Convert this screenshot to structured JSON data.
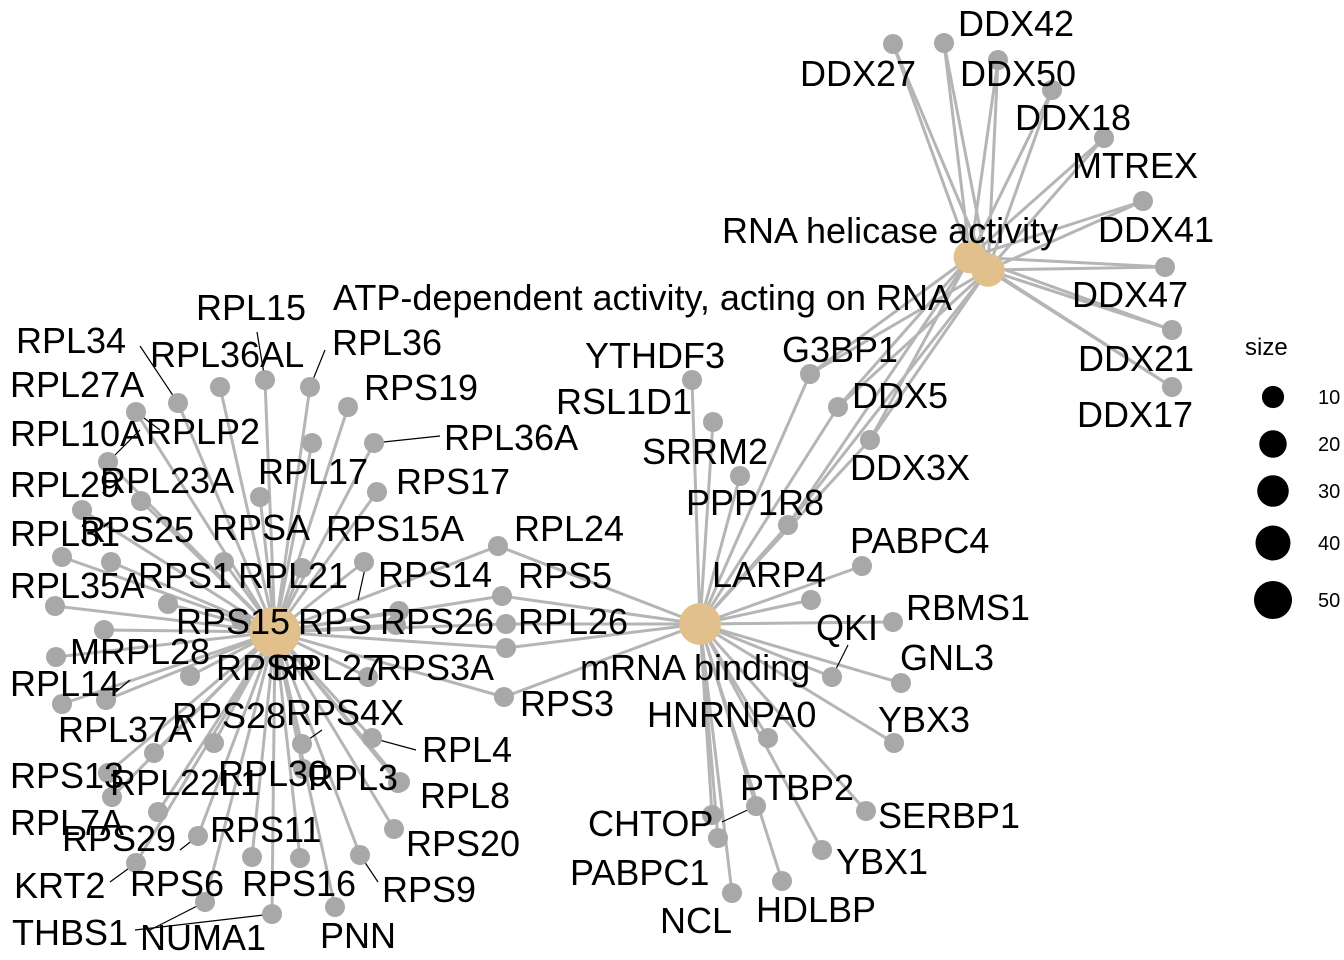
{
  "categories": [
    {
      "id": "rna_helicase",
      "label": "RNA helicase activity",
      "size": 16
    },
    {
      "id": "atp_dependent",
      "label": "ATP-dependent activity, acting on RNA",
      "size": 17
    },
    {
      "id": "mrna_binding",
      "label": "mRNA binding",
      "size": 33
    },
    {
      "id": "ribosome",
      "label": "",
      "size": 55
    }
  ],
  "genes": [
    {
      "label": "DDX42"
    },
    {
      "label": "DDX27"
    },
    {
      "label": "DDX50"
    },
    {
      "label": "DDX18"
    },
    {
      "label": "MTREX"
    },
    {
      "label": "DDX41"
    },
    {
      "label": "DDX47"
    },
    {
      "label": "DDX21"
    },
    {
      "label": "DDX17"
    },
    {
      "label": "G3BP1"
    },
    {
      "label": "DDX5"
    },
    {
      "label": "DDX3X"
    },
    {
      "label": "YTHDF3"
    },
    {
      "label": "RSL1D1"
    },
    {
      "label": "SRRM2"
    },
    {
      "label": "PPP1R8"
    },
    {
      "label": "PABPC4"
    },
    {
      "label": "LARP4"
    },
    {
      "label": "RBMS1"
    },
    {
      "label": "QKI"
    },
    {
      "label": "GNL3"
    },
    {
      "label": "YBX3"
    },
    {
      "label": "HNRNPA0"
    },
    {
      "label": "PTBP2"
    },
    {
      "label": "SERBP1"
    },
    {
      "label": "CHTOP"
    },
    {
      "label": "YBX1"
    },
    {
      "label": "PABPC1"
    },
    {
      "label": "HDLBP"
    },
    {
      "label": "NCL"
    },
    {
      "label": "RPL24"
    },
    {
      "label": "RPS5"
    },
    {
      "label": "RPL26"
    },
    {
      "label": "RPS3A"
    },
    {
      "label": "RPS3"
    },
    {
      "label": "RPL4"
    },
    {
      "label": "RPL8"
    },
    {
      "label": "RPS20"
    },
    {
      "label": "RPS9"
    },
    {
      "label": "PNN"
    },
    {
      "label": "RPS16"
    },
    {
      "label": "RPS11"
    },
    {
      "label": "NUMA1"
    },
    {
      "label": "RPS6"
    },
    {
      "label": "THBS1"
    },
    {
      "label": "KRT2"
    },
    {
      "label": "RPS29"
    },
    {
      "label": "RPL7A"
    },
    {
      "label": "RPL22L1"
    },
    {
      "label": "RPS13"
    },
    {
      "label": "RPL37A"
    },
    {
      "label": "RPL14"
    },
    {
      "label": "MRPL28"
    },
    {
      "label": "RPL35A"
    },
    {
      "label": "RPL31"
    },
    {
      "label": "RPL29"
    },
    {
      "label": "RPL10A"
    },
    {
      "label": "RPL27A"
    },
    {
      "label": "RPL34"
    },
    {
      "label": "RPL15"
    },
    {
      "label": "RPL36AL"
    },
    {
      "label": "RPL36"
    },
    {
      "label": "RPS19"
    },
    {
      "label": "RPL36A"
    },
    {
      "label": "RPS17"
    },
    {
      "label": "RPLP2"
    },
    {
      "label": "RPL23A"
    },
    {
      "label": "RPL17"
    },
    {
      "label": "RPS25"
    },
    {
      "label": "RPSA"
    },
    {
      "label": "RPS15A"
    },
    {
      "label": "RPS14"
    },
    {
      "label": "RPS1"
    },
    {
      "label": "RPL21"
    },
    {
      "label": "RPS15"
    },
    {
      "label": "RPS"
    },
    {
      "label": "RPS26"
    },
    {
      "label": "RPSR"
    },
    {
      "label": "RPL27"
    },
    {
      "label": "RPS28"
    },
    {
      "label": "RPS4X"
    },
    {
      "label": "RPL30"
    },
    {
      "label": "RPL3"
    }
  ],
  "legend": {
    "title": "size",
    "entries": [
      {
        "label": "10",
        "value": 10
      },
      {
        "label": "20",
        "value": 20
      },
      {
        "label": "30",
        "value": 30
      },
      {
        "label": "40",
        "value": 40
      },
      {
        "label": "50",
        "value": 50
      }
    ]
  },
  "colors": {
    "category_node": "#e1c08c",
    "gene_node": "#a8a8a8",
    "edge": "#b5b5b5"
  }
}
